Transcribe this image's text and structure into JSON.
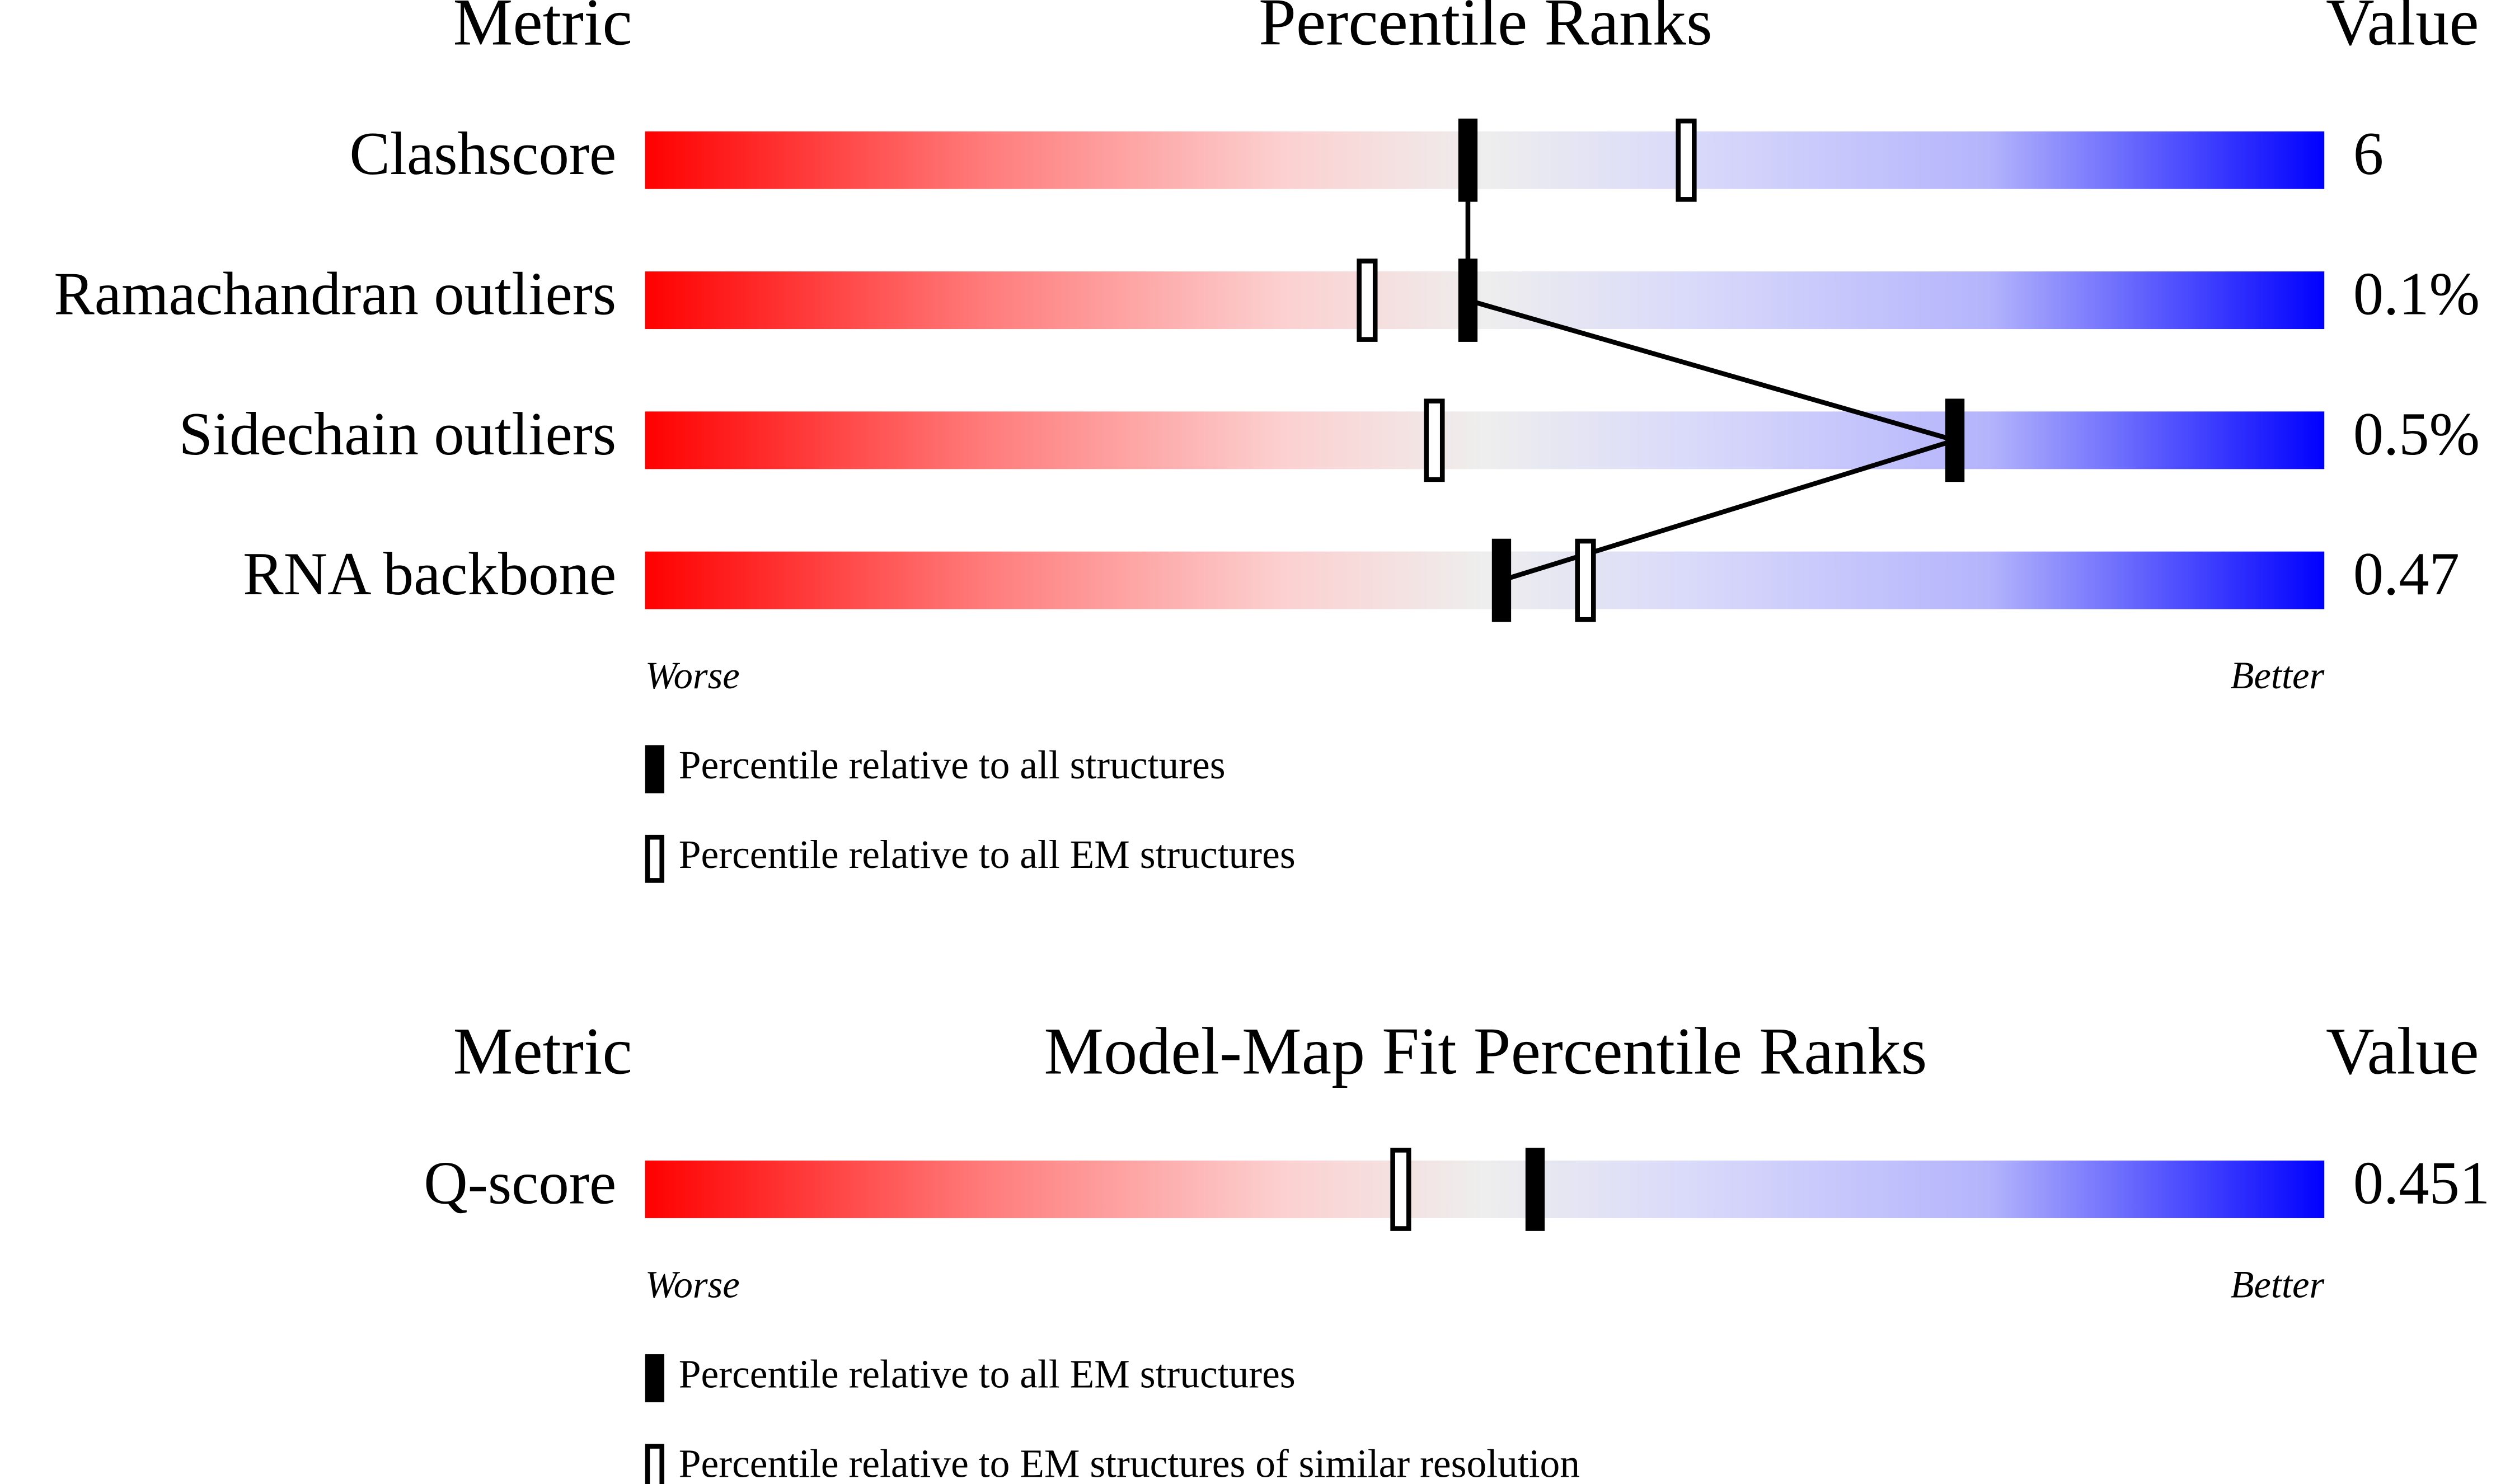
{
  "chart_data": [
    {
      "type": "slider",
      "headers": {
        "metric": "Metric",
        "title": "Percentile Ranks",
        "value": "Value"
      },
      "categories": [
        "Clashscore",
        "Ramachandran outliers",
        "Sidechain outliers",
        "RNA backbone"
      ],
      "metric_values": [
        "6",
        "0.1%",
        "0.5%",
        "0.47"
      ],
      "series": [
        {
          "name": "Percentile relative to all structures",
          "color": "#000000",
          "style": "filled",
          "connected": true,
          "values": [
            49,
            49,
            78,
            51
          ]
        },
        {
          "name": "Percentile relative to all EM structures",
          "color": "#000000",
          "style": "hollow",
          "connected": false,
          "values": [
            62,
            43,
            47,
            56
          ]
        }
      ],
      "xlim": [
        0,
        100
      ],
      "axis_labels": {
        "low": "Worse",
        "high": "Better"
      }
    },
    {
      "type": "slider",
      "headers": {
        "metric": "Metric",
        "title": "Model-Map Fit Percentile Ranks",
        "value": "Value"
      },
      "categories": [
        "Q-score"
      ],
      "metric_values": [
        "0.451"
      ],
      "series": [
        {
          "name": "Percentile relative to all EM structures",
          "color": "#000000",
          "style": "filled",
          "connected": false,
          "values": [
            53
          ]
        },
        {
          "name": "Percentile relative to EM structures of similar resolution",
          "color": "#000000",
          "style": "hollow",
          "connected": false,
          "values": [
            45
          ]
        }
      ],
      "xlim": [
        0,
        100
      ],
      "axis_labels": {
        "low": "Worse",
        "high": "Better"
      }
    }
  ]
}
